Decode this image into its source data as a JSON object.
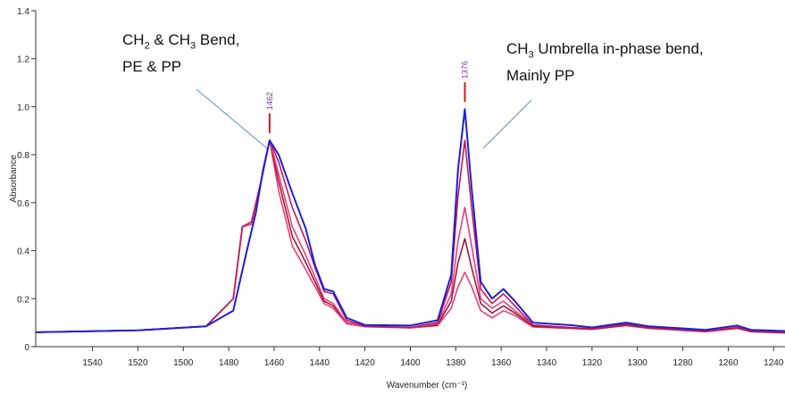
{
  "chart_data": {
    "type": "line",
    "xlabel": "Wavenumber (cm⁻¹)",
    "ylabel": "Absorbance",
    "xlim": [
      1565,
      1235
    ],
    "ylim": [
      0,
      1.4
    ],
    "x_ticks": [
      "1540",
      "1520",
      "1500",
      "1480",
      "1460",
      "1440",
      "1420",
      "1400",
      "1380",
      "1360",
      "1340",
      "1320",
      "1300",
      "1280",
      "1260",
      "1240"
    ],
    "y_ticks": [
      "0",
      "0.2",
      "0.4",
      "0.6",
      "0.8",
      "1.0",
      "1.2",
      "1.4"
    ],
    "peaks": [
      {
        "label": "1462",
        "x": 1462,
        "y": 0.86
      },
      {
        "label": "1376",
        "x": 1376,
        "y": 0.99
      }
    ],
    "annotations": [
      {
        "line1_parts": [
          "CH",
          "2",
          " & CH",
          "3",
          " Bend,"
        ],
        "line2": "PE & PP",
        "points_to": 1462
      },
      {
        "line1_parts": [
          "CH",
          "3",
          " Umbrella in-phase bend,"
        ],
        "line2": "Mainly PP",
        "points_to": 1376
      }
    ],
    "colors": {
      "blue": "#1f1fd6",
      "crimson": "#c2185b",
      "pink": "#e8407a",
      "darkred": "#9c1b3a",
      "marker": "#d0182a",
      "leader": "#5b8fc0"
    },
    "series": [
      {
        "color": "#1f1fd6",
        "points": [
          [
            1565,
            0.06
          ],
          [
            1520,
            0.068
          ],
          [
            1490,
            0.085
          ],
          [
            1478,
            0.15
          ],
          [
            1472,
            0.4
          ],
          [
            1468,
            0.56
          ],
          [
            1465,
            0.73
          ],
          [
            1462,
            0.86
          ],
          [
            1458,
            0.8
          ],
          [
            1452,
            0.64
          ],
          [
            1446,
            0.49
          ],
          [
            1442,
            0.34
          ],
          [
            1438,
            0.24
          ],
          [
            1434,
            0.23
          ],
          [
            1428,
            0.12
          ],
          [
            1420,
            0.09
          ],
          [
            1400,
            0.088
          ],
          [
            1388,
            0.11
          ],
          [
            1382,
            0.3
          ],
          [
            1379,
            0.74
          ],
          [
            1376,
            0.99
          ],
          [
            1373,
            0.66
          ],
          [
            1369,
            0.27
          ],
          [
            1364,
            0.2
          ],
          [
            1359,
            0.24
          ],
          [
            1354,
            0.19
          ],
          [
            1346,
            0.1
          ],
          [
            1330,
            0.09
          ],
          [
            1320,
            0.08
          ],
          [
            1305,
            0.1
          ],
          [
            1295,
            0.085
          ],
          [
            1270,
            0.07
          ],
          [
            1256,
            0.088
          ],
          [
            1250,
            0.07
          ],
          [
            1235,
            0.065
          ]
        ]
      },
      {
        "color": "#c2185b",
        "points": [
          [
            1565,
            0.06
          ],
          [
            1520,
            0.068
          ],
          [
            1490,
            0.085
          ],
          [
            1478,
            0.2
          ],
          [
            1474,
            0.5
          ],
          [
            1470,
            0.52
          ],
          [
            1465,
            0.72
          ],
          [
            1462,
            0.86
          ],
          [
            1458,
            0.77
          ],
          [
            1452,
            0.58
          ],
          [
            1446,
            0.44
          ],
          [
            1442,
            0.33
          ],
          [
            1438,
            0.23
          ],
          [
            1434,
            0.22
          ],
          [
            1428,
            0.11
          ],
          [
            1420,
            0.085
          ],
          [
            1400,
            0.08
          ],
          [
            1388,
            0.1
          ],
          [
            1382,
            0.27
          ],
          [
            1379,
            0.63
          ],
          [
            1376,
            0.86
          ],
          [
            1373,
            0.58
          ],
          [
            1369,
            0.24
          ],
          [
            1364,
            0.18
          ],
          [
            1359,
            0.22
          ],
          [
            1354,
            0.17
          ],
          [
            1346,
            0.09
          ],
          [
            1330,
            0.08
          ],
          [
            1320,
            0.075
          ],
          [
            1305,
            0.095
          ],
          [
            1295,
            0.08
          ],
          [
            1270,
            0.065
          ],
          [
            1256,
            0.08
          ],
          [
            1250,
            0.065
          ],
          [
            1235,
            0.06
          ]
        ]
      },
      {
        "color": "#e8407a",
        "points": [
          [
            1565,
            0.06
          ],
          [
            1520,
            0.068
          ],
          [
            1490,
            0.085
          ],
          [
            1478,
            0.2
          ],
          [
            1474,
            0.5
          ],
          [
            1470,
            0.51
          ],
          [
            1465,
            0.72
          ],
          [
            1462,
            0.86
          ],
          [
            1458,
            0.72
          ],
          [
            1452,
            0.5
          ],
          [
            1446,
            0.38
          ],
          [
            1442,
            0.29
          ],
          [
            1438,
            0.2
          ],
          [
            1434,
            0.18
          ],
          [
            1428,
            0.1
          ],
          [
            1420,
            0.085
          ],
          [
            1400,
            0.08
          ],
          [
            1388,
            0.095
          ],
          [
            1382,
            0.22
          ],
          [
            1379,
            0.44
          ],
          [
            1376,
            0.58
          ],
          [
            1373,
            0.42
          ],
          [
            1369,
            0.2
          ],
          [
            1364,
            0.16
          ],
          [
            1359,
            0.19
          ],
          [
            1354,
            0.15
          ],
          [
            1346,
            0.09
          ],
          [
            1330,
            0.08
          ],
          [
            1320,
            0.075
          ],
          [
            1305,
            0.095
          ],
          [
            1295,
            0.08
          ],
          [
            1270,
            0.065
          ],
          [
            1256,
            0.08
          ],
          [
            1250,
            0.065
          ],
          [
            1235,
            0.06
          ]
        ]
      },
      {
        "color": "#9c1b3a",
        "points": [
          [
            1565,
            0.06
          ],
          [
            1520,
            0.068
          ],
          [
            1490,
            0.085
          ],
          [
            1478,
            0.2
          ],
          [
            1474,
            0.5
          ],
          [
            1470,
            0.51
          ],
          [
            1465,
            0.72
          ],
          [
            1462,
            0.86
          ],
          [
            1458,
            0.69
          ],
          [
            1452,
            0.46
          ],
          [
            1446,
            0.35
          ],
          [
            1442,
            0.27
          ],
          [
            1438,
            0.19
          ],
          [
            1434,
            0.17
          ],
          [
            1428,
            0.1
          ],
          [
            1420,
            0.085
          ],
          [
            1400,
            0.08
          ],
          [
            1388,
            0.09
          ],
          [
            1382,
            0.19
          ],
          [
            1379,
            0.35
          ],
          [
            1376,
            0.45
          ],
          [
            1373,
            0.33
          ],
          [
            1369,
            0.18
          ],
          [
            1364,
            0.14
          ],
          [
            1359,
            0.17
          ],
          [
            1354,
            0.14
          ],
          [
            1346,
            0.085
          ],
          [
            1330,
            0.078
          ],
          [
            1320,
            0.073
          ],
          [
            1305,
            0.09
          ],
          [
            1295,
            0.078
          ],
          [
            1270,
            0.063
          ],
          [
            1256,
            0.078
          ],
          [
            1250,
            0.063
          ],
          [
            1235,
            0.058
          ]
        ]
      },
      {
        "color": "#e8407a",
        "points": [
          [
            1565,
            0.06
          ],
          [
            1520,
            0.068
          ],
          [
            1490,
            0.085
          ],
          [
            1478,
            0.2
          ],
          [
            1474,
            0.5
          ],
          [
            1470,
            0.51
          ],
          [
            1465,
            0.72
          ],
          [
            1462,
            0.86
          ],
          [
            1458,
            0.65
          ],
          [
            1452,
            0.42
          ],
          [
            1446,
            0.32
          ],
          [
            1442,
            0.25
          ],
          [
            1438,
            0.18
          ],
          [
            1434,
            0.16
          ],
          [
            1428,
            0.095
          ],
          [
            1420,
            0.083
          ],
          [
            1400,
            0.078
          ],
          [
            1388,
            0.088
          ],
          [
            1382,
            0.16
          ],
          [
            1379,
            0.25
          ],
          [
            1376,
            0.31
          ],
          [
            1373,
            0.25
          ],
          [
            1369,
            0.15
          ],
          [
            1364,
            0.12
          ],
          [
            1359,
            0.15
          ],
          [
            1354,
            0.13
          ],
          [
            1346,
            0.082
          ],
          [
            1330,
            0.076
          ],
          [
            1320,
            0.072
          ],
          [
            1305,
            0.088
          ],
          [
            1295,
            0.076
          ],
          [
            1270,
            0.062
          ],
          [
            1256,
            0.076
          ],
          [
            1250,
            0.062
          ],
          [
            1235,
            0.057
          ]
        ]
      }
    ]
  }
}
